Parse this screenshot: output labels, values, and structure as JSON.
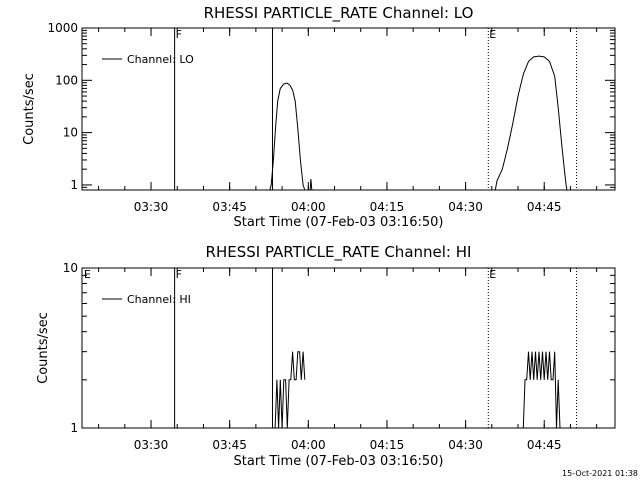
{
  "footer_stamp": "15-Oct-2021 01:38",
  "chart_data": [
    {
      "type": "line",
      "title": "RHESSI PARTICLE_RATE Channel: LO",
      "xlabel": "Start Time (07-Feb-03 03:16:50)",
      "ylabel": "Counts/sec",
      "xlim": [
        "03:16:50",
        "04:58:30"
      ],
      "x_ticks": [
        "03:30",
        "03:45",
        "04:00",
        "04:15",
        "04:30",
        "04:45"
      ],
      "yscale": "log",
      "ylim": [
        0.8,
        1000
      ],
      "y_ticks": [
        {
          "v": 1,
          "label": "1"
        },
        {
          "v": 10,
          "label": "10"
        },
        {
          "v": 100,
          "label": "100"
        },
        {
          "v": 1000,
          "label": "1000"
        }
      ],
      "legend": "top-left",
      "legend_label": "Channel: LO",
      "grid": false,
      "markers": [
        {
          "time": "03:34:30",
          "label": "F",
          "style": "solid"
        },
        {
          "time": "03:53:10",
          "label": "",
          "style": "solid"
        },
        {
          "time": "04:34:20",
          "label": "E",
          "style": "dotted"
        },
        {
          "time": "04:51:10",
          "label": "",
          "style": "dotted"
        }
      ],
      "segments": [
        [
          [
            "03:52:40",
            0.8
          ],
          [
            "03:52:55",
            1
          ],
          [
            "03:53:20",
            3
          ],
          [
            "03:53:45",
            12
          ],
          [
            "03:54:10",
            40
          ],
          [
            "03:54:40",
            70
          ],
          [
            "03:55:20",
            85
          ],
          [
            "03:56:00",
            88
          ],
          [
            "03:56:30",
            80
          ],
          [
            "03:57:00",
            65
          ],
          [
            "03:57:30",
            40
          ],
          [
            "03:58:00",
            12
          ],
          [
            "03:58:30",
            3
          ],
          [
            "03:59:00",
            1
          ],
          [
            "03:59:20",
            0.8
          ]
        ],
        [
          [
            "04:00:20",
            0.8
          ],
          [
            "04:00:30",
            1.3
          ],
          [
            "04:00:40",
            0.8
          ]
        ],
        [
          [
            "04:35:40",
            0.8
          ],
          [
            "04:36:00",
            1.2
          ],
          [
            "04:37:00",
            2
          ],
          [
            "04:38:00",
            5
          ],
          [
            "04:39:00",
            15
          ],
          [
            "04:40:00",
            50
          ],
          [
            "04:41:00",
            130
          ],
          [
            "04:42:00",
            230
          ],
          [
            "04:43:00",
            280
          ],
          [
            "04:44:00",
            290
          ],
          [
            "04:45:00",
            280
          ],
          [
            "04:46:00",
            230
          ],
          [
            "04:47:00",
            120
          ],
          [
            "04:47:40",
            30
          ],
          [
            "04:48:20",
            6
          ],
          [
            "04:48:50",
            2
          ],
          [
            "04:49:10",
            1
          ],
          [
            "04:49:20",
            0.8
          ]
        ]
      ]
    },
    {
      "type": "line",
      "title": "RHESSI PARTICLE_RATE Channel: HI",
      "xlabel": "Start Time (07-Feb-03 03:16:50)",
      "ylabel": "Counts/sec",
      "xlim": [
        "03:16:50",
        "04:58:30"
      ],
      "x_ticks": [
        "03:30",
        "03:45",
        "04:00",
        "04:15",
        "04:30",
        "04:45"
      ],
      "yscale": "log",
      "ylim": [
        1,
        10
      ],
      "y_ticks": [
        {
          "v": 1,
          "label": "1"
        },
        {
          "v": 10,
          "label": "10"
        }
      ],
      "legend": "top-left",
      "legend_label": "Channel: HI",
      "grid": false,
      "markers": [
        {
          "time": "03:17:00",
          "label": "E",
          "style": "none"
        },
        {
          "time": "03:34:30",
          "label": "F",
          "style": "solid"
        },
        {
          "time": "03:53:10",
          "label": "",
          "style": "solid"
        },
        {
          "time": "04:34:20",
          "label": "E",
          "style": "dotted"
        },
        {
          "time": "04:51:10",
          "label": "",
          "style": "dotted"
        }
      ],
      "segments": [
        [
          [
            "03:53:40",
            1
          ],
          [
            "03:54:00",
            2
          ],
          [
            "03:54:20",
            1
          ],
          [
            "03:54:40",
            2
          ],
          [
            "03:55:00",
            1
          ],
          [
            "03:55:20",
            2
          ],
          [
            "03:55:40",
            2
          ],
          [
            "03:56:00",
            1
          ],
          [
            "03:56:20",
            2
          ],
          [
            "03:56:40",
            2
          ],
          [
            "03:57:00",
            3
          ],
          [
            "03:57:20",
            2
          ],
          [
            "03:57:40",
            2
          ],
          [
            "03:58:00",
            3
          ],
          [
            "03:58:20",
            3
          ],
          [
            "03:58:40",
            2
          ],
          [
            "03:59:00",
            3
          ],
          [
            "03:59:20",
            2
          ]
        ],
        [
          [
            "04:41:00",
            1
          ],
          [
            "04:41:20",
            2
          ],
          [
            "04:41:40",
            2
          ],
          [
            "04:42:00",
            3
          ],
          [
            "04:42:20",
            2
          ],
          [
            "04:42:40",
            3
          ],
          [
            "04:43:00",
            2
          ],
          [
            "04:43:20",
            3
          ],
          [
            "04:43:40",
            2
          ],
          [
            "04:44:00",
            3
          ],
          [
            "04:44:20",
            2
          ],
          [
            "04:44:40",
            3
          ],
          [
            "04:45:00",
            2
          ],
          [
            "04:45:20",
            3
          ],
          [
            "04:45:40",
            2
          ],
          [
            "04:46:00",
            3
          ],
          [
            "04:46:20",
            2
          ],
          [
            "04:46:40",
            2
          ],
          [
            "04:47:00",
            3
          ],
          [
            "04:47:20",
            1
          ],
          [
            "04:47:40",
            2
          ],
          [
            "04:48:00",
            1
          ]
        ]
      ]
    }
  ]
}
